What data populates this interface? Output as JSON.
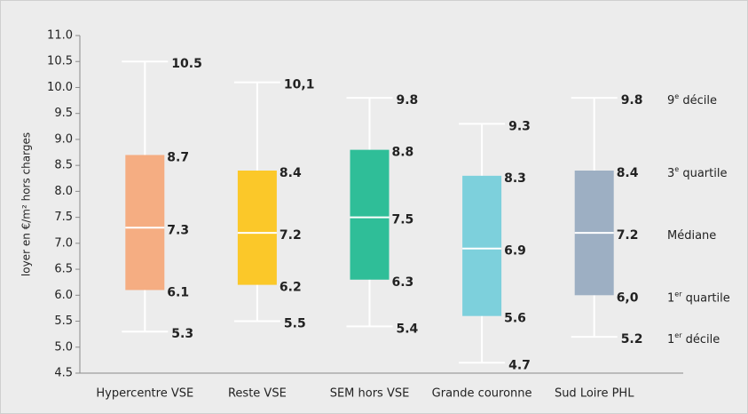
{
  "chart_data": {
    "type": "box",
    "y_label": "loyer en €/m² hors charges",
    "categories": [
      "Hypercentre VSE",
      "Reste VSE",
      "SEM hors VSE",
      "Grande couronne",
      "Sud Loire PHL"
    ],
    "boxes": [
      {
        "color": "#f5ad82",
        "d1": 5.3,
        "q1": 6.1,
        "median": 7.3,
        "q3": 8.7,
        "d9": 10.5,
        "value_labels": {
          "d1": "5.3",
          "q1": "6.1",
          "median": "7.3",
          "q3": "8.7",
          "d9": "10.5"
        }
      },
      {
        "color": "#fbc829",
        "d1": 5.5,
        "q1": 6.2,
        "median": 7.2,
        "q3": 8.4,
        "d9": 10.1,
        "value_labels": {
          "d1": "5.5",
          "q1": "6.2",
          "median": "7.2",
          "q3": "8.4",
          "d9": "10,1"
        }
      },
      {
        "color": "#2fbe98",
        "d1": 5.4,
        "q1": 6.3,
        "median": 7.5,
        "q3": 8.8,
        "d9": 9.8,
        "value_labels": {
          "d1": "5.4",
          "q1": "6.3",
          "median": "7.5",
          "q3": "8.8",
          "d9": "9.8"
        }
      },
      {
        "color": "#7dd0dc",
        "d1": 4.7,
        "q1": 5.6,
        "median": 6.9,
        "q3": 8.3,
        "d9": 9.3,
        "value_labels": {
          "d1": "4.7",
          "q1": "5.6",
          "median": "6.9",
          "q3": "8.3",
          "d9": "9.3"
        }
      },
      {
        "color": "#9dafc3",
        "d1": 5.2,
        "q1": 6.0,
        "median": 7.2,
        "q3": 8.4,
        "d9": 9.8,
        "value_labels": {
          "d1": "5.2",
          "q1": "6,0",
          "median": "7.2",
          "q3": "8.4",
          "d9": "9.8"
        }
      }
    ],
    "annotations": {
      "d9": {
        "prefix": "9",
        "sup": "e",
        "suffix": " décile"
      },
      "q3": {
        "prefix": "3",
        "sup": "e",
        "suffix": " quartile"
      },
      "median": {
        "prefix": "Médiane"
      },
      "q1": {
        "prefix": "1",
        "sup": "er",
        "suffix": " quartile"
      },
      "d1": {
        "prefix": "1",
        "sup": "er",
        "suffix": " décile"
      }
    },
    "ylim": [
      4.5,
      11.0
    ],
    "yticks": [
      4.5,
      {
        "value": 5,
        "label": "5.0"
      },
      5.5,
      {
        "value": 6,
        "label": "6.0"
      },
      6.5,
      {
        "value": 7,
        "label": "7.0"
      },
      7.5,
      {
        "value": 8,
        "label": "8.0"
      },
      8.5,
      {
        "value": 9,
        "label": "9.0"
      },
      9.5,
      {
        "value": 10,
        "label": "10.0"
      },
      10.5,
      {
        "value": 11,
        "label": "11.0"
      }
    ]
  }
}
